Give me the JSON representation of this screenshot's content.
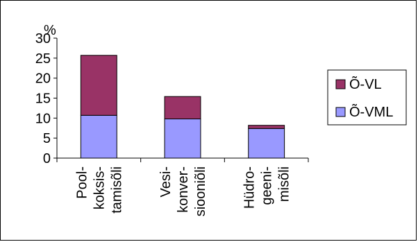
{
  "chart_data": {
    "type": "bar",
    "stacked": true,
    "y_unit_label": "%",
    "categories": [
      [
        "Pool-",
        "koksis-",
        "tamisõli"
      ],
      [
        "Vesi-",
        "konver-",
        "siooniõli"
      ],
      [
        "Hüdro-",
        "geeni-",
        "misõli"
      ]
    ],
    "series": [
      {
        "name": "Õ-VML",
        "values": [
          10.7,
          9.8,
          7.4
        ],
        "color": "#9999ff"
      },
      {
        "name": "Õ-VL",
        "values": [
          15.0,
          5.6,
          0.8
        ],
        "color": "#993366"
      }
    ],
    "ylim": [
      0,
      30
    ],
    "yticks": [
      0,
      5,
      10,
      15,
      20,
      25,
      30
    ],
    "grid": false,
    "legend_position": "right",
    "legend_order": [
      "Õ-VL",
      "Õ-VML"
    ]
  }
}
